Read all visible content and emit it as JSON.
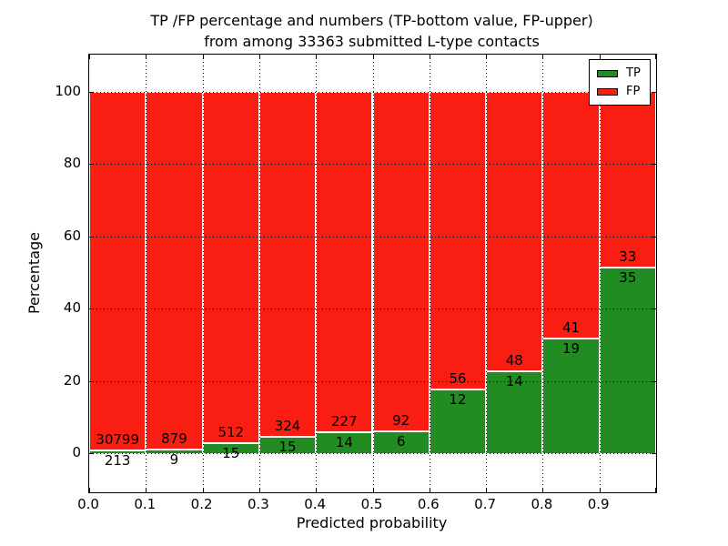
{
  "chart_data": {
    "type": "bar",
    "stacked": true,
    "orientation": "vertical",
    "title_line1": "TP /FP percentage and numbers (TP-bottom value, FP-upper)",
    "title_line2": "from among 33363 submitted L-type contacts",
    "title": "TP /FP percentage and numbers (TP-bottom value, FP-upper)\nfrom among 33363 submitted L-type contacts",
    "xlabel": "Predicted probability",
    "ylabel": "Percentage",
    "total_submitted_contacts": 33363,
    "xlim": [
      0.0,
      1.0
    ],
    "ylim": [
      -10.8,
      110.3
    ],
    "bin_width": 0.1,
    "bin_edges": [
      0.0,
      0.1,
      0.2,
      0.3,
      0.4,
      0.5,
      0.6,
      0.7,
      0.8,
      0.9,
      1.0
    ],
    "categories": [
      "0.0-0.1",
      "0.1-0.2",
      "0.2-0.3",
      "0.3-0.4",
      "0.4-0.5",
      "0.5-0.6",
      "0.6-0.7",
      "0.7-0.8",
      "0.8-0.9",
      "0.9-1.0"
    ],
    "x_tick_labels": [
      "0.0",
      "0.1",
      "0.2",
      "0.3",
      "0.4",
      "0.5",
      "0.6",
      "0.7",
      "0.8",
      "0.9"
    ],
    "y_tick_labels": [
      "0",
      "20",
      "40",
      "60",
      "80",
      "100"
    ],
    "y_tick_values": [
      0,
      20,
      40,
      60,
      80,
      100
    ],
    "grid": "dotted black, on x ticks and y ticks",
    "series": [
      {
        "name": "TP",
        "color": "#228b22",
        "counts": [
          213,
          9,
          15,
          15,
          14,
          6,
          12,
          14,
          19,
          35
        ]
      },
      {
        "name": "FP",
        "color": "#fa1d12",
        "counts": [
          30799,
          879,
          512,
          324,
          227,
          92,
          56,
          48,
          41,
          33
        ]
      }
    ],
    "tp_percent_approx": [
      0.69,
      1.01,
      2.85,
      4.42,
      5.81,
      6.12,
      17.65,
      22.58,
      31.67,
      51.47
    ],
    "annotation_rule": "FP count printed just above green/red boundary, TP count just below it",
    "legend": {
      "position": "upper right",
      "entries": [
        "TP",
        "FP"
      ]
    },
    "colors": {
      "tp_green": "#228b22",
      "fp_red": "#fa1d12",
      "axis": "#000000",
      "background": "#ffffff"
    }
  }
}
